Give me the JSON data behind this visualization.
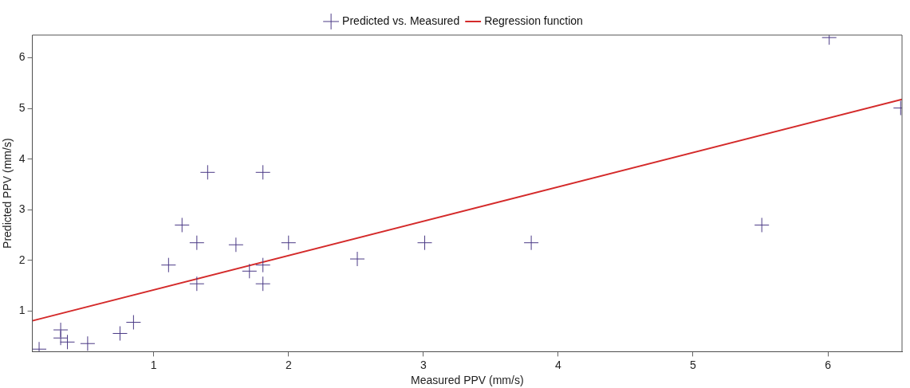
{
  "chart_data": {
    "type": "scatter",
    "xlabel": "Measured PPV (mm/s)",
    "ylabel": "Predicted PPV (mm/s)",
    "xlim": [
      0.1,
      6.55
    ],
    "xticks": [
      1,
      2,
      3,
      4,
      5,
      6
    ],
    "ylim": [
      0.2,
      6.45
    ],
    "yticks": [
      1,
      2,
      3,
      4,
      5,
      6
    ],
    "grid": false,
    "legend": "top",
    "series": [
      {
        "name": "Predicted vs. Measured",
        "marker": "cross",
        "color": "#4b3a86",
        "x": [
          0.15,
          0.31,
          0.31,
          0.36,
          0.51,
          0.75,
          0.85,
          1.11,
          1.21,
          1.32,
          1.32,
          1.61,
          1.71,
          1.81,
          1.81,
          2.0,
          1.4,
          1.81,
          2.51,
          3.01,
          3.8,
          6.01,
          6.54,
          5.51
        ],
        "values": [
          0.25,
          0.63,
          0.47,
          0.39,
          0.36,
          0.56,
          0.78,
          1.91,
          2.7,
          2.35,
          1.54,
          2.31,
          1.79,
          1.91,
          1.54,
          2.35,
          3.74,
          3.74,
          2.03,
          2.35,
          2.35,
          6.4,
          5.01,
          2.7
        ]
      },
      {
        "name": "Regression function",
        "type": "line",
        "color": "#d42a2a",
        "line_style": "solid",
        "x": [
          0.1,
          6.55
        ],
        "values": [
          0.81,
          5.18
        ]
      }
    ]
  }
}
